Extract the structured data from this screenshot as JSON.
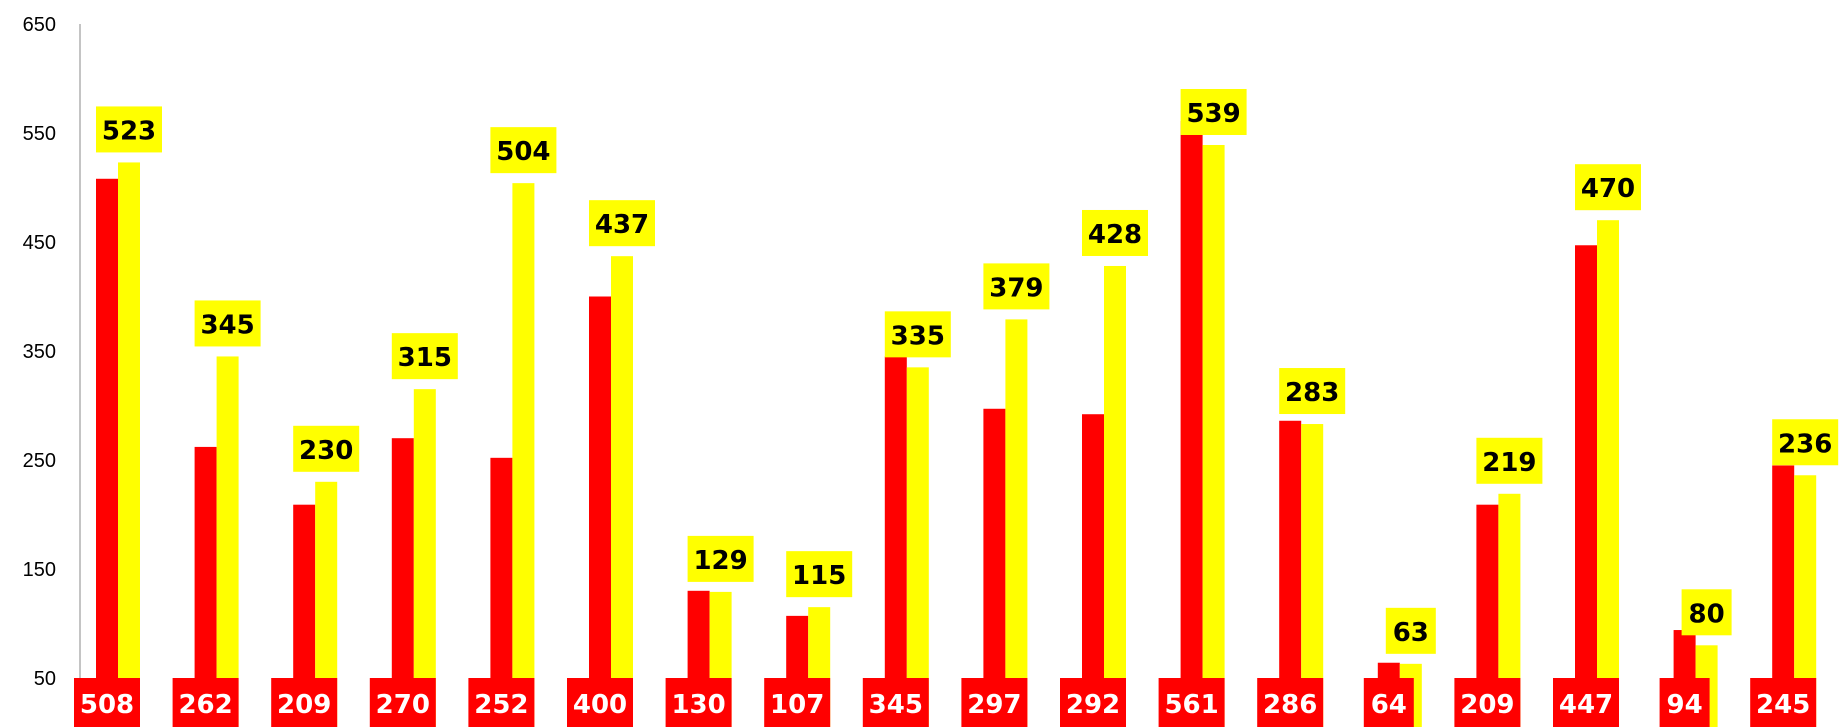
{
  "chart_data": {
    "type": "bar",
    "title": "",
    "xlabel": "",
    "ylabel": "",
    "ylim": [
      50,
      650
    ],
    "yticks": [
      50,
      150,
      250,
      350,
      450,
      550,
      650
    ],
    "ytick_labels": [
      "50",
      "150",
      "250",
      "350",
      "450",
      "550",
      "650"
    ],
    "grid": false,
    "legend": "none",
    "categories": [
      "",
      "",
      "",
      "",
      "",
      "",
      "",
      "",
      "",
      "",
      "",
      "",
      "",
      "",
      "",
      "",
      "",
      ""
    ],
    "series": [
      {
        "color": "#ff0000",
        "label_position": "bottom",
        "label_text_color": "#ffffff",
        "values": [
          508,
          262,
          209,
          270,
          252,
          400,
          130,
          107,
          345,
          297,
          292,
          561,
          286,
          64,
          209,
          447,
          94,
          245
        ],
        "labels": [
          "508",
          "262",
          "209",
          "270",
          "252",
          "400",
          "130",
          "107",
          "345",
          "297",
          "292",
          "561",
          "286",
          "64",
          "209",
          "447",
          "94",
          "245"
        ]
      },
      {
        "color": "#ffff00",
        "label_position": "top",
        "label_text_color": "#000000",
        "values": [
          523,
          345,
          230,
          315,
          504,
          437,
          129,
          115,
          335,
          379,
          428,
          539,
          283,
          63,
          219,
          470,
          80,
          236
        ],
        "labels": [
          "523",
          "345",
          "230",
          "315",
          "504",
          "437",
          "129",
          "115",
          "335",
          "379",
          "428",
          "539",
          "283",
          "63",
          "219",
          "470",
          "80",
          "236"
        ]
      }
    ]
  }
}
